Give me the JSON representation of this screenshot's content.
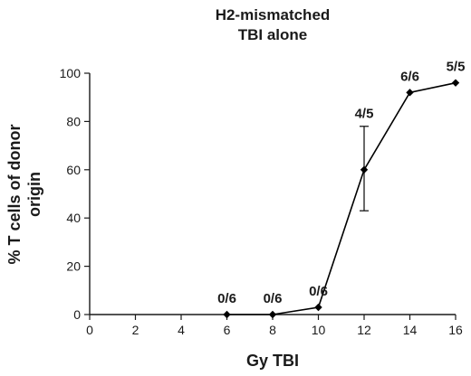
{
  "chart_data": {
    "type": "line",
    "title_lines": [
      "H2-mismatched",
      "TBI alone"
    ],
    "xlabel": "Gy TBI",
    "ylabel_lines": [
      "% T cells of donor",
      "origin"
    ],
    "xlim": [
      0,
      16
    ],
    "ylim": [
      0,
      100
    ],
    "xticks": [
      0,
      2,
      4,
      6,
      8,
      10,
      12,
      14,
      16
    ],
    "yticks": [
      0,
      20,
      40,
      60,
      80,
      100
    ],
    "grid": false,
    "series": [
      {
        "x": [
          6,
          8,
          10,
          12,
          14,
          16
        ],
        "y": [
          0,
          0,
          3,
          60,
          92,
          96
        ],
        "labels": [
          "0/6",
          "0/6",
          "0/6",
          "4/5",
          "6/6",
          "5/5"
        ],
        "error": [
          null,
          null,
          null,
          [
            43,
            78
          ],
          null,
          null
        ],
        "marker": "diamond",
        "color": "#000000"
      }
    ]
  }
}
